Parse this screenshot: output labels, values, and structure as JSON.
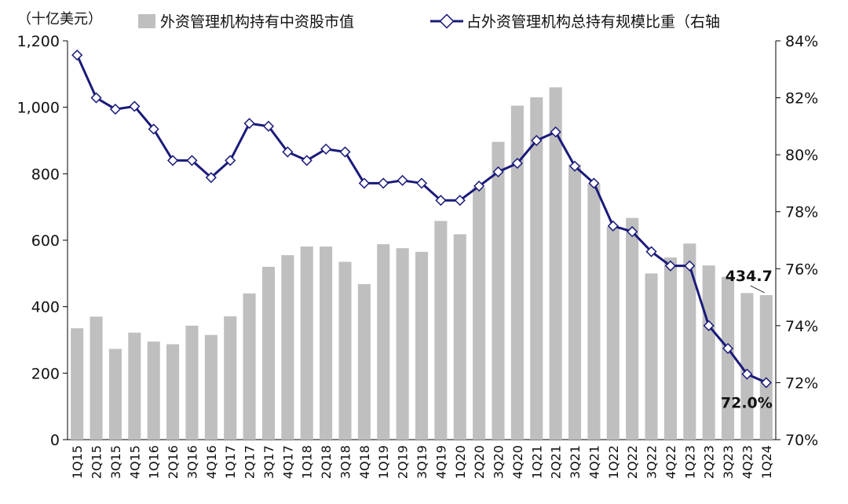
{
  "chart_data": {
    "type": "bar+line",
    "unit_label": "（十亿美元）",
    "categories": [
      "1Q15",
      "2Q15",
      "3Q15",
      "4Q15",
      "1Q16",
      "2Q16",
      "3Q16",
      "4Q16",
      "1Q17",
      "2Q17",
      "3Q17",
      "4Q17",
      "1Q18",
      "2Q18",
      "3Q18",
      "4Q18",
      "1Q19",
      "2Q19",
      "3Q19",
      "4Q19",
      "1Q20",
      "2Q20",
      "3Q20",
      "4Q20",
      "1Q21",
      "2Q21",
      "3Q21",
      "4Q21",
      "1Q22",
      "2Q22",
      "3Q22",
      "4Q22",
      "1Q23",
      "2Q23",
      "3Q23",
      "4Q23",
      "1Q24"
    ],
    "bar_series": {
      "name": "外资管理机构持有中资股市值",
      "color": "#bfbfbf",
      "values": [
        335,
        370,
        273,
        322,
        295,
        287,
        343,
        315,
        371,
        440,
        520,
        555,
        581,
        581,
        535,
        468,
        588,
        576,
        565,
        658,
        618,
        758,
        896,
        1005,
        1030,
        1060,
        828,
        770,
        640,
        667,
        500,
        548,
        590,
        524,
        490,
        441,
        434.7
      ]
    },
    "line_series": {
      "name": "占外资管理机构总持有规模比重（右轴",
      "color": "#1a1a7a",
      "values": [
        83.5,
        82.0,
        81.6,
        81.7,
        80.9,
        79.8,
        79.8,
        79.2,
        79.8,
        81.1,
        81.0,
        80.1,
        79.8,
        80.2,
        80.1,
        79.0,
        79.0,
        79.1,
        79.0,
        78.4,
        78.4,
        78.9,
        79.4,
        79.7,
        80.5,
        80.8,
        79.6,
        79.0,
        77.5,
        77.3,
        76.6,
        76.1,
        76.1,
        74.0,
        73.2,
        72.3,
        72.0
      ]
    },
    "y_left": {
      "min": 0,
      "max": 1200,
      "ticks": [
        "0",
        "200",
        "400",
        "600",
        "800",
        "1,000",
        "1,200"
      ],
      "tick_values": [
        0,
        200,
        400,
        600,
        800,
        1000,
        1200
      ]
    },
    "y_right": {
      "min": 70,
      "max": 84,
      "ticks": [
        "70%",
        "72%",
        "74%",
        "76%",
        "78%",
        "80%",
        "82%",
        "84%"
      ],
      "tick_values": [
        70,
        72,
        74,
        76,
        78,
        80,
        82,
        84
      ]
    },
    "annotations": {
      "last_bar_label": "434.7",
      "last_line_label": "72.0%"
    }
  }
}
